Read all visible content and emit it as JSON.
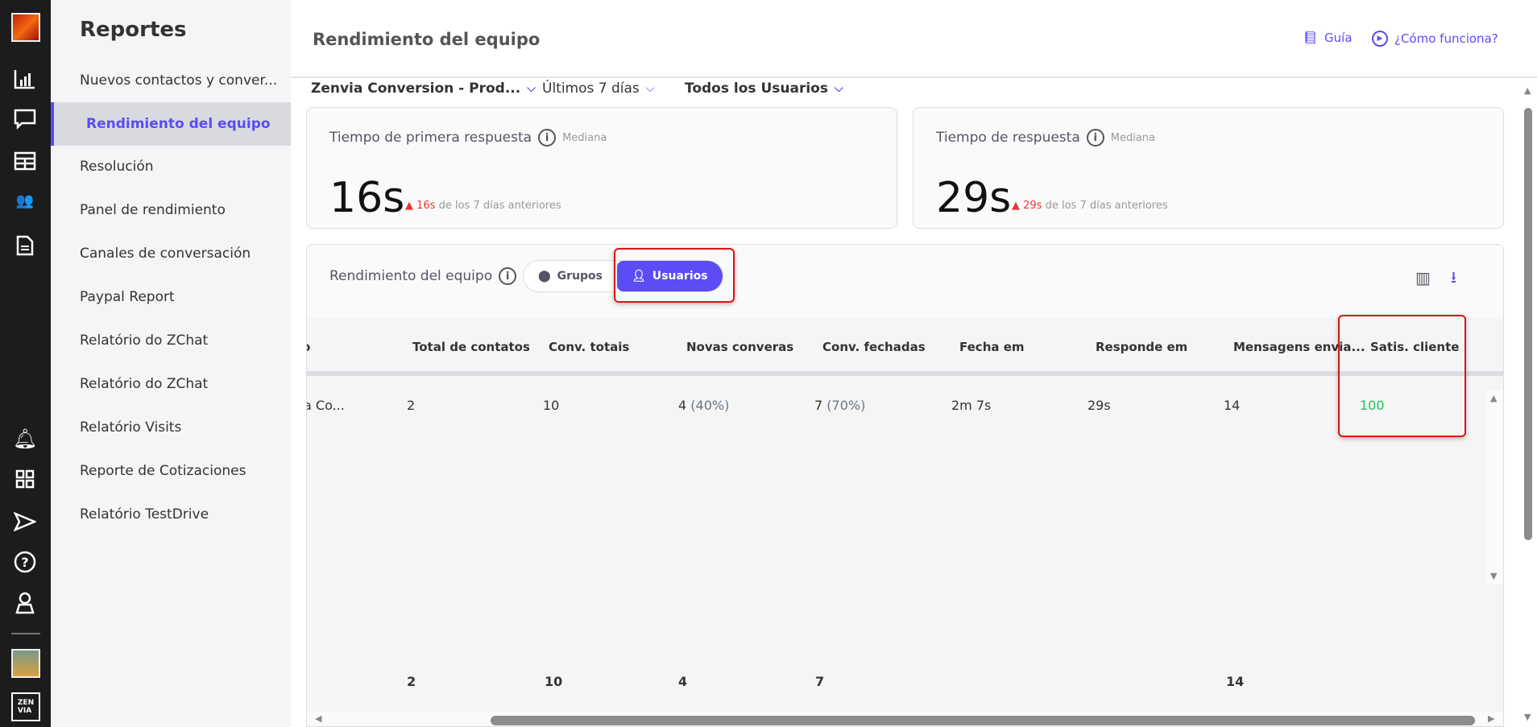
{
  "rail": {
    "icons": [
      "workspace-avatar",
      "bar-chart-icon",
      "chat-icon",
      "table-icon",
      "team-icon",
      "document-icon",
      "bell-icon",
      "apps-grid-icon",
      "send-icon",
      "help-icon",
      "user-icon",
      "profile-avatar",
      "zenvia-logo"
    ]
  },
  "sidebar": {
    "title": "Reportes",
    "items": [
      {
        "label": "Nuevos contactos y conver..."
      },
      {
        "label": "Rendimiento del equipo",
        "active": true
      },
      {
        "label": "Resolución"
      },
      {
        "label": "Panel de rendimiento"
      },
      {
        "label": "Canales de conversación"
      },
      {
        "label": "Paypal Report"
      },
      {
        "label": "Relatório do ZChat"
      },
      {
        "label": "Relatório do ZChat"
      },
      {
        "label": "Relatório Visits"
      },
      {
        "label": "Reporte de Cotizaciones"
      },
      {
        "label": "Relatório TestDrive"
      }
    ]
  },
  "header": {
    "title": "Rendimiento del equipo",
    "guide": "Guía",
    "how": "¿Cómo funciona?"
  },
  "filters": {
    "workspace": "Zenvia Conversion - Prod...",
    "period": "Últimos 7 días",
    "users": "Todos los Usuarios"
  },
  "cards": [
    {
      "label": "Tiempo de primera respuesta",
      "sub": "Mediana",
      "value": "16s",
      "delta": "16s",
      "delta_text": "de los 7 días anteriores"
    },
    {
      "label": "Tiempo de respuesta",
      "sub": "Mediana",
      "value": "29s",
      "delta": "29s",
      "delta_text": "de los 7 días anteriores"
    }
  ],
  "panel": {
    "title": "Rendimiento del equipo",
    "groups": "Grupos",
    "users": "Usuarios",
    "columns": [
      "o",
      "Total de contatos",
      "Conv. totais",
      "Novas converas",
      "Conv. fechadas",
      "Fecha em",
      "Responde em",
      "Mensagens envia...",
      "Satis. cliente"
    ],
    "row": {
      "name": "a Co...",
      "total": "2",
      "conv": "10",
      "novas": "4",
      "novas_pct": "(40%)",
      "fechadas": "7",
      "fechadas_pct": "(70%)",
      "fecha_em": "2m 7s",
      "responde_em": "29s",
      "mensagens": "14",
      "satis": "100"
    },
    "totals": {
      "total": "2",
      "conv": "10",
      "novas": "4",
      "fechadas": "7",
      "mensagens": "14"
    }
  },
  "colors": {
    "accent": "#5b4cf5",
    "positive": "#1fbf5f",
    "negative": "#e53935",
    "highlight": "#e01010"
  }
}
